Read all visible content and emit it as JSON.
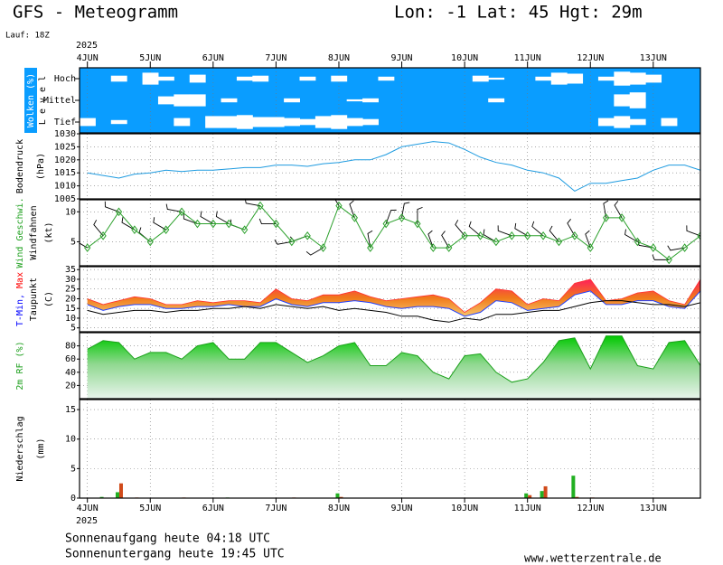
{
  "title": "GFS - Meteogramm",
  "location": "Lon: -1 Lat: 45 Hgt: 29m",
  "run": "Lauf: 18Z",
  "sunrise": "Sonnenaufgang heute 04:18 UTC",
  "sunset": "Sonnenuntergang heute 19:45 UTC",
  "source": "www.wetterzentrale.de",
  "time": {
    "year": "2025",
    "xlim": [
      -3,
      234
    ],
    "xticks": [
      {
        "value": 0,
        "label": "4JUN"
      },
      {
        "value": 24,
        "label": "5JUN"
      },
      {
        "value": 48,
        "label": "6JUN"
      },
      {
        "value": 72,
        "label": "7JUN"
      },
      {
        "value": 96,
        "label": "8JUN"
      },
      {
        "value": 120,
        "label": "9JUN"
      },
      {
        "value": 144,
        "label": "10JUN"
      },
      {
        "value": 168,
        "label": "11JUN"
      },
      {
        "value": 192,
        "label": "12JUN"
      },
      {
        "value": 216,
        "label": "13JUN"
      }
    ],
    "x": [
      0,
      6,
      12,
      18,
      24,
      30,
      36,
      42,
      48,
      54,
      60,
      66,
      72,
      78,
      84,
      90,
      96,
      102,
      108,
      114,
      120,
      126,
      132,
      138,
      144,
      150,
      156,
      162,
      168,
      174,
      180,
      186,
      192,
      198,
      204,
      210,
      216,
      222,
      228,
      234
    ]
  },
  "chart_data": [
    {
      "type": "clouds",
      "ylabel": [
        [
          {
            "text": "Wolken (%)",
            "color": "#ffffff"
          }
        ],
        [
          {
            "text": "L e v e l",
            "color": "#000000"
          }
        ]
      ],
      "background": "#0a9dff",
      "color": "#ffffff",
      "ylim": [
        0,
        100
      ],
      "series": [
        {
          "name": "Hoch",
          "values": [
            0,
            0,
            30,
            0,
            60,
            20,
            0,
            40,
            0,
            0,
            20,
            30,
            0,
            0,
            20,
            0,
            30,
            0,
            0,
            20,
            0,
            0,
            0,
            0,
            0,
            30,
            10,
            0,
            0,
            20,
            60,
            50,
            0,
            20,
            70,
            60,
            40,
            0,
            0,
            0
          ]
        },
        {
          "name": "Mittel",
          "values": [
            0,
            0,
            0,
            0,
            0,
            40,
            60,
            60,
            0,
            20,
            0,
            0,
            0,
            20,
            0,
            0,
            0,
            10,
            20,
            0,
            0,
            0,
            0,
            0,
            0,
            0,
            20,
            0,
            0,
            0,
            0,
            0,
            0,
            0,
            60,
            80,
            0,
            0,
            0,
            0
          ]
        },
        {
          "name": "Tief",
          "values": [
            40,
            0,
            20,
            0,
            0,
            0,
            40,
            0,
            60,
            60,
            70,
            50,
            50,
            40,
            30,
            60,
            70,
            40,
            30,
            0,
            0,
            0,
            0,
            0,
            0,
            0,
            0,
            0,
            0,
            0,
            0,
            0,
            0,
            40,
            60,
            30,
            0,
            40,
            0,
            0
          ]
        }
      ]
    },
    {
      "type": "line",
      "ylabel": [
        [
          {
            "text": "Bodendruck",
            "color": "#000000"
          }
        ],
        [
          {
            "text": "(hPa)",
            "color": "#000000"
          }
        ]
      ],
      "ylim": [
        1005,
        1030
      ],
      "yticks": [
        1005,
        1010,
        1015,
        1020,
        1025,
        1030
      ],
      "grid": true,
      "series": [
        {
          "color": "#1e9be0",
          "values": [
            1015,
            1014,
            1013,
            1014.5,
            1015,
            1016,
            1015.5,
            1016,
            1016,
            1016.5,
            1017,
            1017,
            1018,
            1018,
            1017.5,
            1018.5,
            1019,
            1020,
            1020,
            1022,
            1025,
            1026,
            1027,
            1026.5,
            1024,
            1021,
            1019,
            1018,
            1016,
            1015,
            1013,
            1008,
            1011,
            1011,
            1012,
            1013,
            1016,
            1018,
            1018,
            1016
          ]
        }
      ]
    },
    {
      "type": "wind",
      "ylabel": [
        [
          {
            "text": "Wind Geschwi.",
            "color": "#1fa01f"
          }
        ],
        [
          {
            "text": "Windfahnen",
            "color": "#000000"
          }
        ],
        [
          {
            "text": "(kt)",
            "color": "#000000"
          }
        ]
      ],
      "ylim": [
        1,
        12
      ],
      "yticks": [
        5,
        10
      ],
      "grid": true,
      "series": [
        {
          "color": "#2ca02c",
          "values": [
            4,
            6,
            10,
            7,
            5,
            7,
            10,
            8,
            8,
            8,
            7,
            11,
            8,
            5,
            6,
            4,
            11,
            9,
            4,
            8,
            9,
            8,
            4,
            4,
            6,
            6,
            5,
            6,
            6,
            6,
            5,
            6,
            4,
            9,
            9,
            5,
            4,
            2,
            4,
            6
          ]
        },
        {
          "color": "#000000",
          "values": [
            300,
            320,
            290,
            300,
            310,
            300,
            280,
            290,
            300,
            300,
            290,
            280,
            270,
            260,
            250,
            240,
            330,
            340,
            350,
            20,
            10,
            0,
            340,
            330,
            320,
            310,
            300,
            290,
            300,
            310,
            320,
            330,
            340,
            350,
            330,
            300,
            280,
            270,
            260,
            290
          ]
        }
      ]
    },
    {
      "type": "temperature",
      "ylabel": [
        [
          {
            "text": "T-Min,",
            "color": "#0000ff"
          },
          {
            "text": " Max",
            "color": "#ff0000"
          }
        ],
        [
          {
            "text": "Taupunkt",
            "color": "#000000"
          }
        ],
        [
          {
            "text": "(C)",
            "color": "#000000"
          }
        ]
      ],
      "ylim": [
        3,
        36.5
      ],
      "yticks": [
        5,
        10,
        15,
        20,
        25,
        30,
        35
      ],
      "grid": true,
      "band_colors": [
        "#ff1f5a",
        "#f07a1a",
        "#f7c46a"
      ],
      "series": [
        {
          "color": "#ff3030",
          "values": [
            20,
            17,
            19,
            21,
            20,
            17,
            17,
            19,
            18,
            19,
            19,
            18,
            25,
            20,
            19,
            22,
            22,
            24,
            21,
            19,
            20,
            21,
            22,
            20,
            13,
            18,
            25,
            24,
            17,
            20,
            19,
            28,
            30,
            19,
            20,
            23,
            24,
            19,
            17,
            30
          ]
        },
        {
          "color": "#2040ff",
          "values": [
            17,
            14,
            16,
            17,
            17,
            15,
            15,
            16,
            16,
            17,
            16,
            16,
            20,
            17,
            16,
            18,
            18,
            19,
            18,
            16,
            15,
            16,
            16,
            15,
            11,
            13,
            19,
            18,
            14,
            15,
            16,
            22,
            24,
            17,
            17,
            19,
            19,
            16,
            15,
            24
          ]
        },
        {
          "color": "#000000",
          "values": [
            14,
            12,
            13,
            14,
            14,
            13,
            14,
            14,
            15,
            15,
            16,
            15,
            17,
            16,
            15,
            16,
            14,
            15,
            14,
            13,
            11,
            11,
            9,
            8,
            10,
            9,
            12,
            12,
            13,
            14,
            14,
            16,
            18,
            19,
            19,
            18,
            17,
            17,
            16,
            18
          ]
        }
      ]
    },
    {
      "type": "area",
      "ylabel": [
        [
          {
            "text": "2m RF (%)",
            "color": "#1fa01f"
          }
        ]
      ],
      "ylim": [
        0,
        100
      ],
      "yticks": [
        20,
        40,
        60,
        80
      ],
      "grid": true,
      "series": [
        {
          "color": "#1aa01a",
          "values": [
            75,
            88,
            85,
            60,
            70,
            70,
            60,
            80,
            85,
            60,
            60,
            85,
            85,
            70,
            55,
            65,
            80,
            85,
            50,
            50,
            70,
            65,
            40,
            30,
            65,
            68,
            40,
            25,
            30,
            55,
            88,
            92,
            45,
            95,
            95,
            50,
            45,
            85,
            88,
            50
          ]
        }
      ]
    },
    {
      "type": "bar",
      "ylabel": [
        [
          {
            "text": "Niederschlag",
            "color": "#000000"
          }
        ],
        [
          {
            "text": "(mm)",
            "color": "#000000"
          }
        ]
      ],
      "ylim": [
        0,
        16.7
      ],
      "yticks": [
        0,
        5,
        10,
        15
      ],
      "grid": true,
      "series": [
        {
          "color": "#22b022",
          "values": [
            0,
            0.2,
            1,
            0,
            0,
            0,
            0,
            0,
            0,
            0.1,
            0,
            0,
            0,
            0,
            0,
            0,
            0.8,
            0,
            0,
            0,
            0,
            0,
            0,
            0,
            0,
            0,
            0,
            0,
            0.8,
            1.2,
            0,
            3.8,
            0,
            0,
            0,
            0,
            0,
            0,
            0,
            0
          ]
        },
        {
          "color": "#d04a1a",
          "values": [
            0,
            0,
            2.5,
            0.1,
            0,
            0,
            0.1,
            0,
            0,
            0,
            0,
            0,
            0,
            0.1,
            0,
            0,
            0.2,
            0,
            0,
            0,
            0,
            0,
            0,
            0,
            0,
            0,
            0,
            0,
            0.5,
            2,
            0,
            0.2,
            0.1,
            0,
            0,
            0,
            0,
            0,
            0,
            0
          ]
        }
      ]
    }
  ]
}
